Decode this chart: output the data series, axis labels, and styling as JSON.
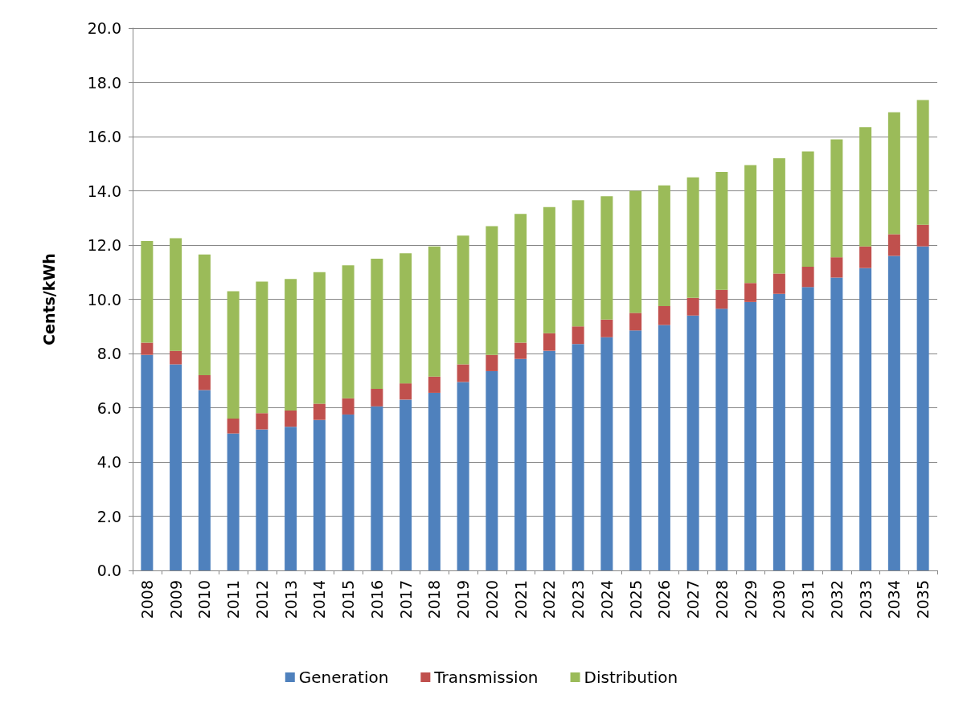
{
  "chart_data": {
    "type": "bar",
    "stacked": true,
    "ylabel": "Cents/kWh",
    "categories": [
      "2008",
      "2009",
      "2010",
      "2011",
      "2012",
      "2013",
      "2014",
      "2015",
      "2016",
      "2017",
      "2018",
      "2019",
      "2020",
      "2021",
      "2022",
      "2023",
      "2024",
      "2025",
      "2026",
      "2027",
      "2028",
      "2029",
      "2030",
      "2031",
      "2032",
      "2033",
      "2034",
      "2035"
    ],
    "series": [
      {
        "name": "Generation",
        "color": "#4f81bd",
        "values": [
          7.95,
          7.6,
          6.65,
          5.05,
          5.2,
          5.3,
          5.55,
          5.75,
          6.05,
          6.3,
          6.55,
          6.95,
          7.35,
          7.8,
          8.1,
          8.35,
          8.6,
          8.85,
          9.05,
          9.4,
          9.65,
          9.9,
          10.2,
          10.45,
          10.8,
          11.15,
          11.6,
          11.95
        ]
      },
      {
        "name": "Transmission",
        "color": "#c0504d",
        "values": [
          0.45,
          0.5,
          0.55,
          0.55,
          0.6,
          0.6,
          0.6,
          0.6,
          0.65,
          0.6,
          0.6,
          0.65,
          0.6,
          0.6,
          0.65,
          0.65,
          0.65,
          0.65,
          0.7,
          0.65,
          0.7,
          0.7,
          0.75,
          0.75,
          0.75,
          0.8,
          0.8,
          0.8
        ]
      },
      {
        "name": "Distribution",
        "color": "#9bbb59",
        "values": [
          3.75,
          4.15,
          4.45,
          4.7,
          4.85,
          4.85,
          4.85,
          4.9,
          4.8,
          4.8,
          4.8,
          4.75,
          4.75,
          4.75,
          4.65,
          4.65,
          4.55,
          4.5,
          4.45,
          4.45,
          4.35,
          4.35,
          4.25,
          4.25,
          4.35,
          4.4,
          4.5,
          4.6
        ]
      }
    ],
    "ylim": [
      0,
      20
    ],
    "yticks": [
      {
        "value": 0,
        "label": "0.0"
      },
      {
        "value": 2,
        "label": "2.0"
      },
      {
        "value": 4,
        "label": "4.0"
      },
      {
        "value": 6,
        "label": "6.0"
      },
      {
        "value": 8,
        "label": "8.0"
      },
      {
        "value": 10,
        "label": "10.0"
      },
      {
        "value": 12,
        "label": "12.0"
      },
      {
        "value": 14,
        "label": "14.0"
      },
      {
        "value": 16,
        "label": "16.0"
      },
      {
        "value": 18,
        "label": "18.0"
      },
      {
        "value": 20,
        "label": "20.0"
      }
    ],
    "grid": "y",
    "legend": "bottom"
  }
}
